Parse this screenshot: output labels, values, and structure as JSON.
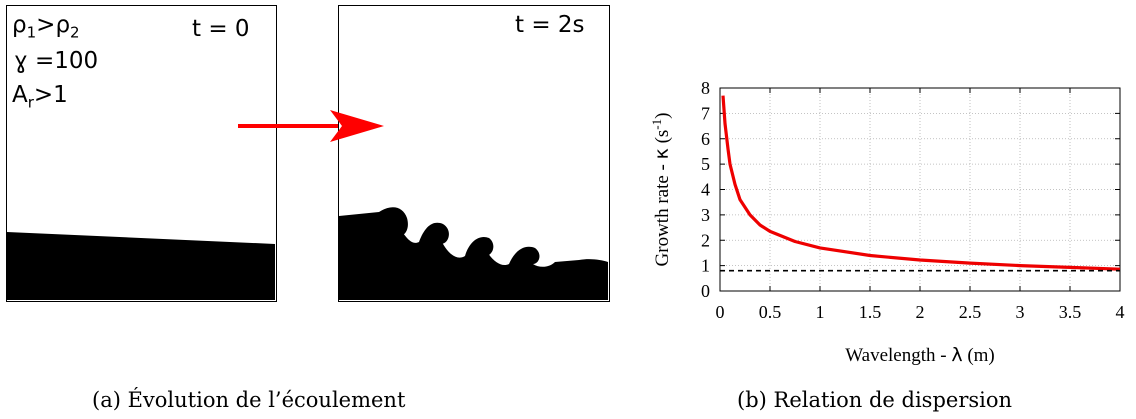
{
  "left_panel": {
    "label_rho": {
      "a": "ρ",
      "a_sub": "1",
      "op": ">",
      "b": "ρ",
      "b_sub": "2"
    },
    "label_gamma": "ɣ =100",
    "label_ar": {
      "base": "A",
      "sub": "r",
      "rest": ">1"
    },
    "time_left": "t = 0",
    "time_right": "t = 2s",
    "caption": "(a) Évolution de l’écoulement",
    "colors": {
      "fluid": "#000000",
      "arrow": "#ff0000"
    }
  },
  "chart_data": {
    "type": "line",
    "xlabel_prefix": "Wavelength - ",
    "xlabel_symbol": "λ",
    "xlabel_unit": " (m)",
    "ylabel": "Growth rate - κ (s-1)",
    "ylabel_prefix": "Growth rate - ",
    "ylabel_symbol": "κ",
    "ylabel_unit": " (s",
    "ylabel_sup": "-1",
    "ylabel_close": ")",
    "xlim": [
      0,
      4
    ],
    "ylim": [
      0,
      8
    ],
    "x_ticks": [
      "0",
      "0.5",
      "1",
      "1.5",
      "2",
      "2.5",
      "3",
      "3.5",
      "4"
    ],
    "y_ticks": [
      "0",
      "1",
      "2",
      "3",
      "4",
      "5",
      "6",
      "7",
      "8"
    ],
    "grid": true,
    "series": [
      {
        "style": "solid",
        "color": "#ee0000",
        "x": [
          0.03,
          0.05,
          0.08,
          0.1,
          0.15,
          0.2,
          0.3,
          0.4,
          0.5,
          0.75,
          1.0,
          1.5,
          2.0,
          2.5,
          3.0,
          3.5,
          4.0
        ],
        "y": [
          7.7,
          6.6,
          5.6,
          5.0,
          4.2,
          3.6,
          3.0,
          2.6,
          2.35,
          1.95,
          1.7,
          1.4,
          1.22,
          1.1,
          1.0,
          0.93,
          0.86
        ]
      },
      {
        "style": "dashed",
        "color": "#000000",
        "x": [
          0,
          4
        ],
        "y": [
          0.8,
          0.8
        ]
      }
    ],
    "caption": "(b) Relation de dispersion"
  }
}
